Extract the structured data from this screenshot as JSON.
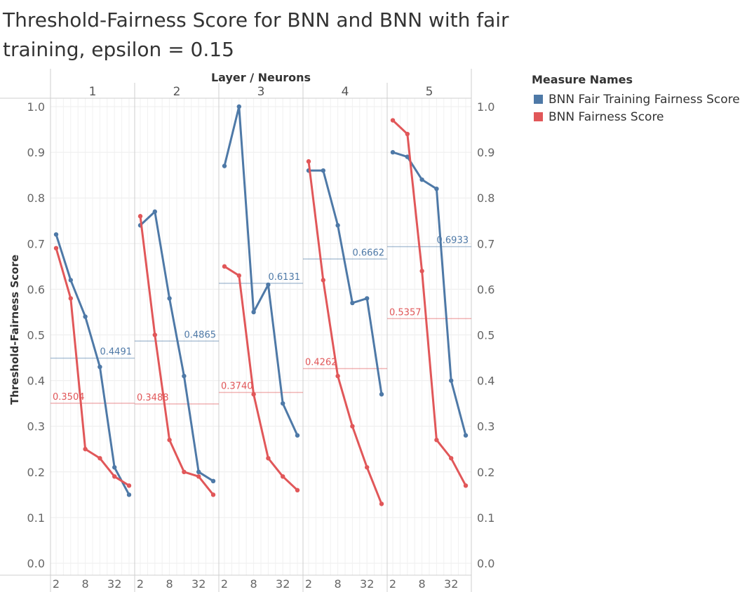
{
  "chart_data": {
    "type": "line",
    "title": "Threshold-Fairness Score for BNN and BNN with fair training, epsilon = 0.15",
    "column_header_title": "Layer / Neurons",
    "ylabel": "Threshold-Fairness Score",
    "ylim": [
      0,
      1.0
    ],
    "y_ticks": [
      "0.0",
      "0.1",
      "0.2",
      "0.3",
      "0.4",
      "0.5",
      "0.6",
      "0.7",
      "0.8",
      "0.9",
      "1.0"
    ],
    "x_ticks": [
      "2",
      "8",
      "32"
    ],
    "grid": true,
    "legend_title": "Measure Names",
    "legend_position": "right",
    "panels": [
      {
        "layer": "1",
        "series": [
          {
            "name": "BNN Fair Training Fairness Score",
            "color": "#4E79A7",
            "x": [
              2,
              4,
              8,
              16,
              32,
              64
            ],
            "values": [
              0.72,
              0.62,
              0.54,
              0.43,
              0.21,
              0.15
            ]
          },
          {
            "name": "BNN Fairness Score",
            "color": "#E15759",
            "x": [
              2,
              4,
              8,
              16,
              32,
              64
            ],
            "values": [
              0.69,
              0.58,
              0.25,
              0.23,
              0.19,
              0.17
            ]
          }
        ],
        "ref_lines": [
          {
            "series": "BNN Fair Training Fairness Score",
            "value": 0.4491,
            "label": "0.4491"
          },
          {
            "series": "BNN Fairness Score",
            "value": 0.3504,
            "label": "0.3504"
          }
        ]
      },
      {
        "layer": "2",
        "series": [
          {
            "name": "BNN Fair Training Fairness Score",
            "color": "#4E79A7",
            "x": [
              2,
              4,
              8,
              16,
              32,
              64
            ],
            "values": [
              0.74,
              0.77,
              0.58,
              0.41,
              0.2,
              0.18
            ]
          },
          {
            "name": "BNN Fairness Score",
            "color": "#E15759",
            "x": [
              2,
              4,
              8,
              16,
              32,
              64
            ],
            "values": [
              0.76,
              0.5,
              0.27,
              0.2,
              0.19,
              0.15
            ]
          }
        ],
        "ref_lines": [
          {
            "series": "BNN Fair Training Fairness Score",
            "value": 0.4865,
            "label": "0.4865"
          },
          {
            "series": "BNN Fairness Score",
            "value": 0.3488,
            "label": "0.3488"
          }
        ]
      },
      {
        "layer": "3",
        "series": [
          {
            "name": "BNN Fair Training Fairness Score",
            "color": "#4E79A7",
            "x": [
              2,
              4,
              8,
              16,
              32,
              64
            ],
            "values": [
              0.87,
              1.0,
              0.55,
              0.61,
              0.35,
              0.28
            ]
          },
          {
            "name": "BNN Fairness Score",
            "color": "#E15759",
            "x": [
              2,
              4,
              8,
              16,
              32,
              64
            ],
            "values": [
              0.65,
              0.63,
              0.37,
              0.23,
              0.19,
              0.16
            ]
          }
        ],
        "ref_lines": [
          {
            "series": "BNN Fair Training Fairness Score",
            "value": 0.6131,
            "label": "0.6131"
          },
          {
            "series": "BNN Fairness Score",
            "value": 0.374,
            "label": "0.3740"
          }
        ]
      },
      {
        "layer": "4",
        "series": [
          {
            "name": "BNN Fair Training Fairness Score",
            "color": "#4E79A7",
            "x": [
              2,
              4,
              8,
              16,
              32,
              64
            ],
            "values": [
              0.86,
              0.86,
              0.74,
              0.57,
              0.58,
              0.37
            ]
          },
          {
            "name": "BNN Fairness Score",
            "color": "#E15759",
            "x": [
              2,
              4,
              8,
              16,
              32,
              64
            ],
            "values": [
              0.88,
              0.62,
              0.41,
              0.3,
              0.21,
              0.13
            ]
          }
        ],
        "ref_lines": [
          {
            "series": "BNN Fair Training Fairness Score",
            "value": 0.6662,
            "label": "0.6662"
          },
          {
            "series": "BNN Fairness Score",
            "value": 0.4262,
            "label": "0.4262"
          }
        ]
      },
      {
        "layer": "5",
        "series": [
          {
            "name": "BNN Fair Training Fairness Score",
            "color": "#4E79A7",
            "x": [
              2,
              4,
              8,
              16,
              32,
              64
            ],
            "values": [
              0.9,
              0.89,
              0.84,
              0.82,
              0.4,
              0.28
            ]
          },
          {
            "name": "BNN Fairness Score",
            "color": "#E15759",
            "x": [
              2,
              4,
              8,
              16,
              32,
              64
            ],
            "values": [
              0.97,
              0.94,
              0.64,
              0.27,
              0.23,
              0.17
            ]
          }
        ],
        "ref_lines": [
          {
            "series": "BNN Fair Training Fairness Score",
            "value": 0.6933,
            "label": "0.6933"
          },
          {
            "series": "BNN Fairness Score",
            "value": 0.5357,
            "label": "0.5357"
          }
        ]
      }
    ]
  },
  "legend": {
    "title": "Measure Names",
    "items": [
      {
        "label": "BNN Fair Training Fairness Score",
        "color": "#4E79A7"
      },
      {
        "label": "BNN Fairness Score",
        "color": "#E15759"
      }
    ]
  }
}
